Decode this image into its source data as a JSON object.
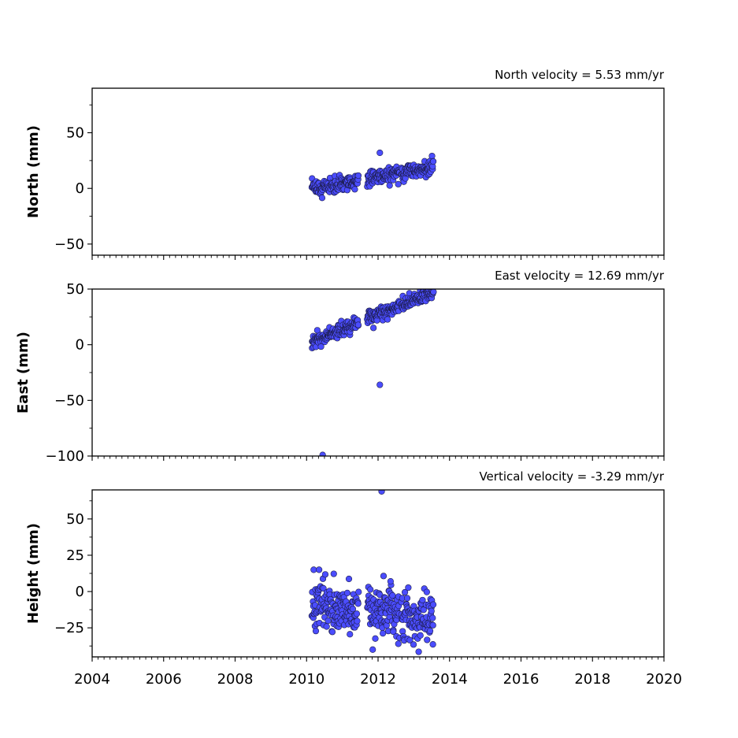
{
  "chart_data": [
    {
      "type": "scatter",
      "key": "north",
      "annotation": "North velocity = 5.53 mm/yr",
      "ylabel": "North (mm)",
      "xlabel": "",
      "xlim": [
        2004,
        2020
      ],
      "ylim": [
        -60,
        90
      ],
      "yticks": [
        -50,
        0,
        50
      ],
      "ytick_labels": [
        "−50",
        "0",
        "50"
      ],
      "xtick_labels_visible": false,
      "velocity_mm_per_yr": 5.53,
      "marker_color": "#4b4dff",
      "trend": {
        "start": [
          2010.15,
          -1.0
        ],
        "end": [
          2013.5,
          19.5
        ],
        "scatter": 3.5
      },
      "segments": [
        [
          2010.15,
          2011.45
        ],
        [
          2011.7,
          2012.6
        ],
        [
          2012.65,
          2013.55
        ]
      ],
      "outliers": [
        {
          "x": 2012.05,
          "y": 32
        }
      ],
      "series": []
    },
    {
      "type": "scatter",
      "key": "east",
      "annotation": "East velocity = 12.69 mm/yr",
      "ylabel": "East (mm)",
      "xlabel": "",
      "xlim": [
        2004,
        2020
      ],
      "ylim": [
        -100,
        50
      ],
      "yticks": [
        -100,
        -50,
        0,
        50
      ],
      "ytick_labels": [
        "−100",
        "−50",
        "0",
        "50"
      ],
      "xtick_labels_visible": false,
      "velocity_mm_per_yr": 12.69,
      "marker_color": "#4b4dff",
      "trend": {
        "start": [
          2010.15,
          2.0
        ],
        "end": [
          2013.5,
          47.0
        ],
        "scatter": 3.0
      },
      "segments": [
        [
          2010.15,
          2011.45
        ],
        [
          2011.7,
          2012.6
        ],
        [
          2012.65,
          2013.55
        ]
      ],
      "outliers": [
        {
          "x": 2012.05,
          "y": -36
        },
        {
          "x": 2010.45,
          "y": -99
        },
        {
          "x": 2010.3,
          "y": 13
        }
      ],
      "series": []
    },
    {
      "type": "scatter",
      "key": "height",
      "annotation": "Vertical velocity = -3.29 mm/yr",
      "ylabel": "Height (mm)",
      "xlabel": "",
      "xlim": [
        2004,
        2020
      ],
      "ylim": [
        -45,
        70
      ],
      "yticks": [
        -25,
        0,
        25,
        50
      ],
      "ytick_labels": [
        "−25",
        "0",
        "25",
        "50"
      ],
      "xticks": [
        2004,
        2006,
        2008,
        2010,
        2012,
        2014,
        2016,
        2018,
        2020
      ],
      "xtick_labels": [
        "2004",
        "2006",
        "2008",
        "2010",
        "2012",
        "2014",
        "2016",
        "2018",
        "2020"
      ],
      "xtick_labels_visible": true,
      "velocity_mm_per_yr": -3.29,
      "marker_color": "#4b4dff",
      "trend": {
        "start": [
          2010.15,
          -9.0
        ],
        "end": [
          2013.5,
          -20.0
        ],
        "scatter": 8.5
      },
      "segments": [
        [
          2010.15,
          2011.45
        ],
        [
          2011.7,
          2012.6
        ],
        [
          2012.65,
          2013.55
        ]
      ],
      "outliers": [
        {
          "x": 2012.1,
          "y": 69
        },
        {
          "x": 2010.2,
          "y": 15
        },
        {
          "x": 2010.35,
          "y": 15
        },
        {
          "x": 2011.85,
          "y": -40
        },
        {
          "x": 2012.35,
          "y": 7
        }
      ],
      "series": []
    }
  ]
}
